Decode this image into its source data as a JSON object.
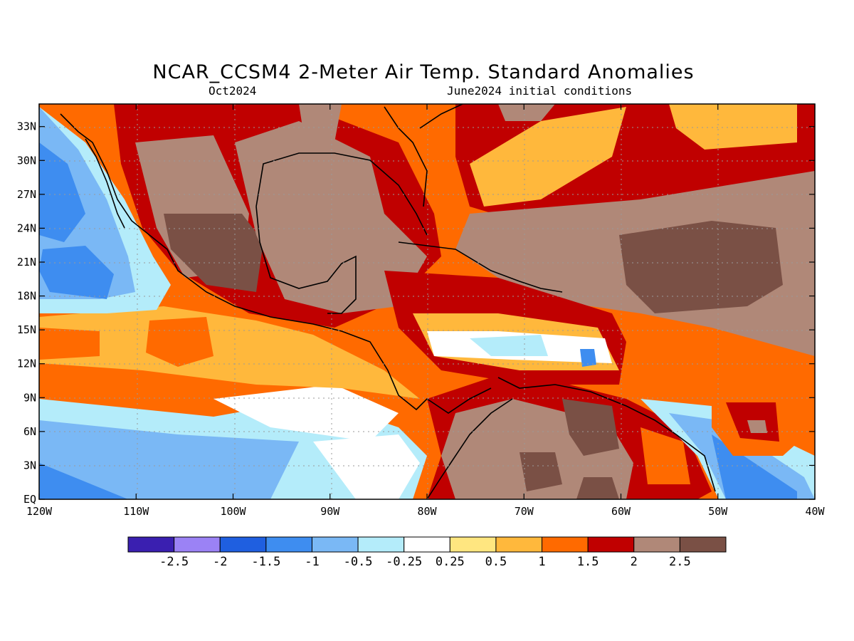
{
  "title": "NCAR_CCSM4 2-Meter Air Temp. Standard Anomalies",
  "valid_month": "Oct2024",
  "init_label": "June2024 initial conditions",
  "lat_labels": [
    "33N",
    "30N",
    "27N",
    "24N",
    "21N",
    "18N",
    "15N",
    "12N",
    "9N",
    "6N",
    "3N",
    "EQ"
  ],
  "lat_values": [
    33,
    30,
    27,
    24,
    21,
    18,
    15,
    12,
    9,
    6,
    3,
    0
  ],
  "lon_labels": [
    "120W",
    "110W",
    "100W",
    "90W",
    "80W",
    "70W",
    "60W",
    "50W",
    "40W"
  ],
  "lon_values": [
    -120,
    -110,
    -100,
    -90,
    -80,
    -70,
    -60,
    -50,
    -40
  ],
  "colorbar": {
    "colors": [
      "#3a1fb0",
      "#9b82f5",
      "#1f5fe0",
      "#3e8df0",
      "#7ab8f5",
      "#b4ecfa",
      "#ffffff",
      "#ffe680",
      "#ffb83c",
      "#ff6a00",
      "#c00000",
      "#b08878",
      "#7a5045"
    ],
    "labels": [
      "-2.5",
      "-2",
      "-1.5",
      "-1",
      "-0.5",
      "-0.25",
      "0.25",
      "0.5",
      "1",
      "1.5",
      "2",
      "2.5"
    ]
  },
  "colors": {
    "land_line": "#000000",
    "grid": "#9a9a9a"
  }
}
